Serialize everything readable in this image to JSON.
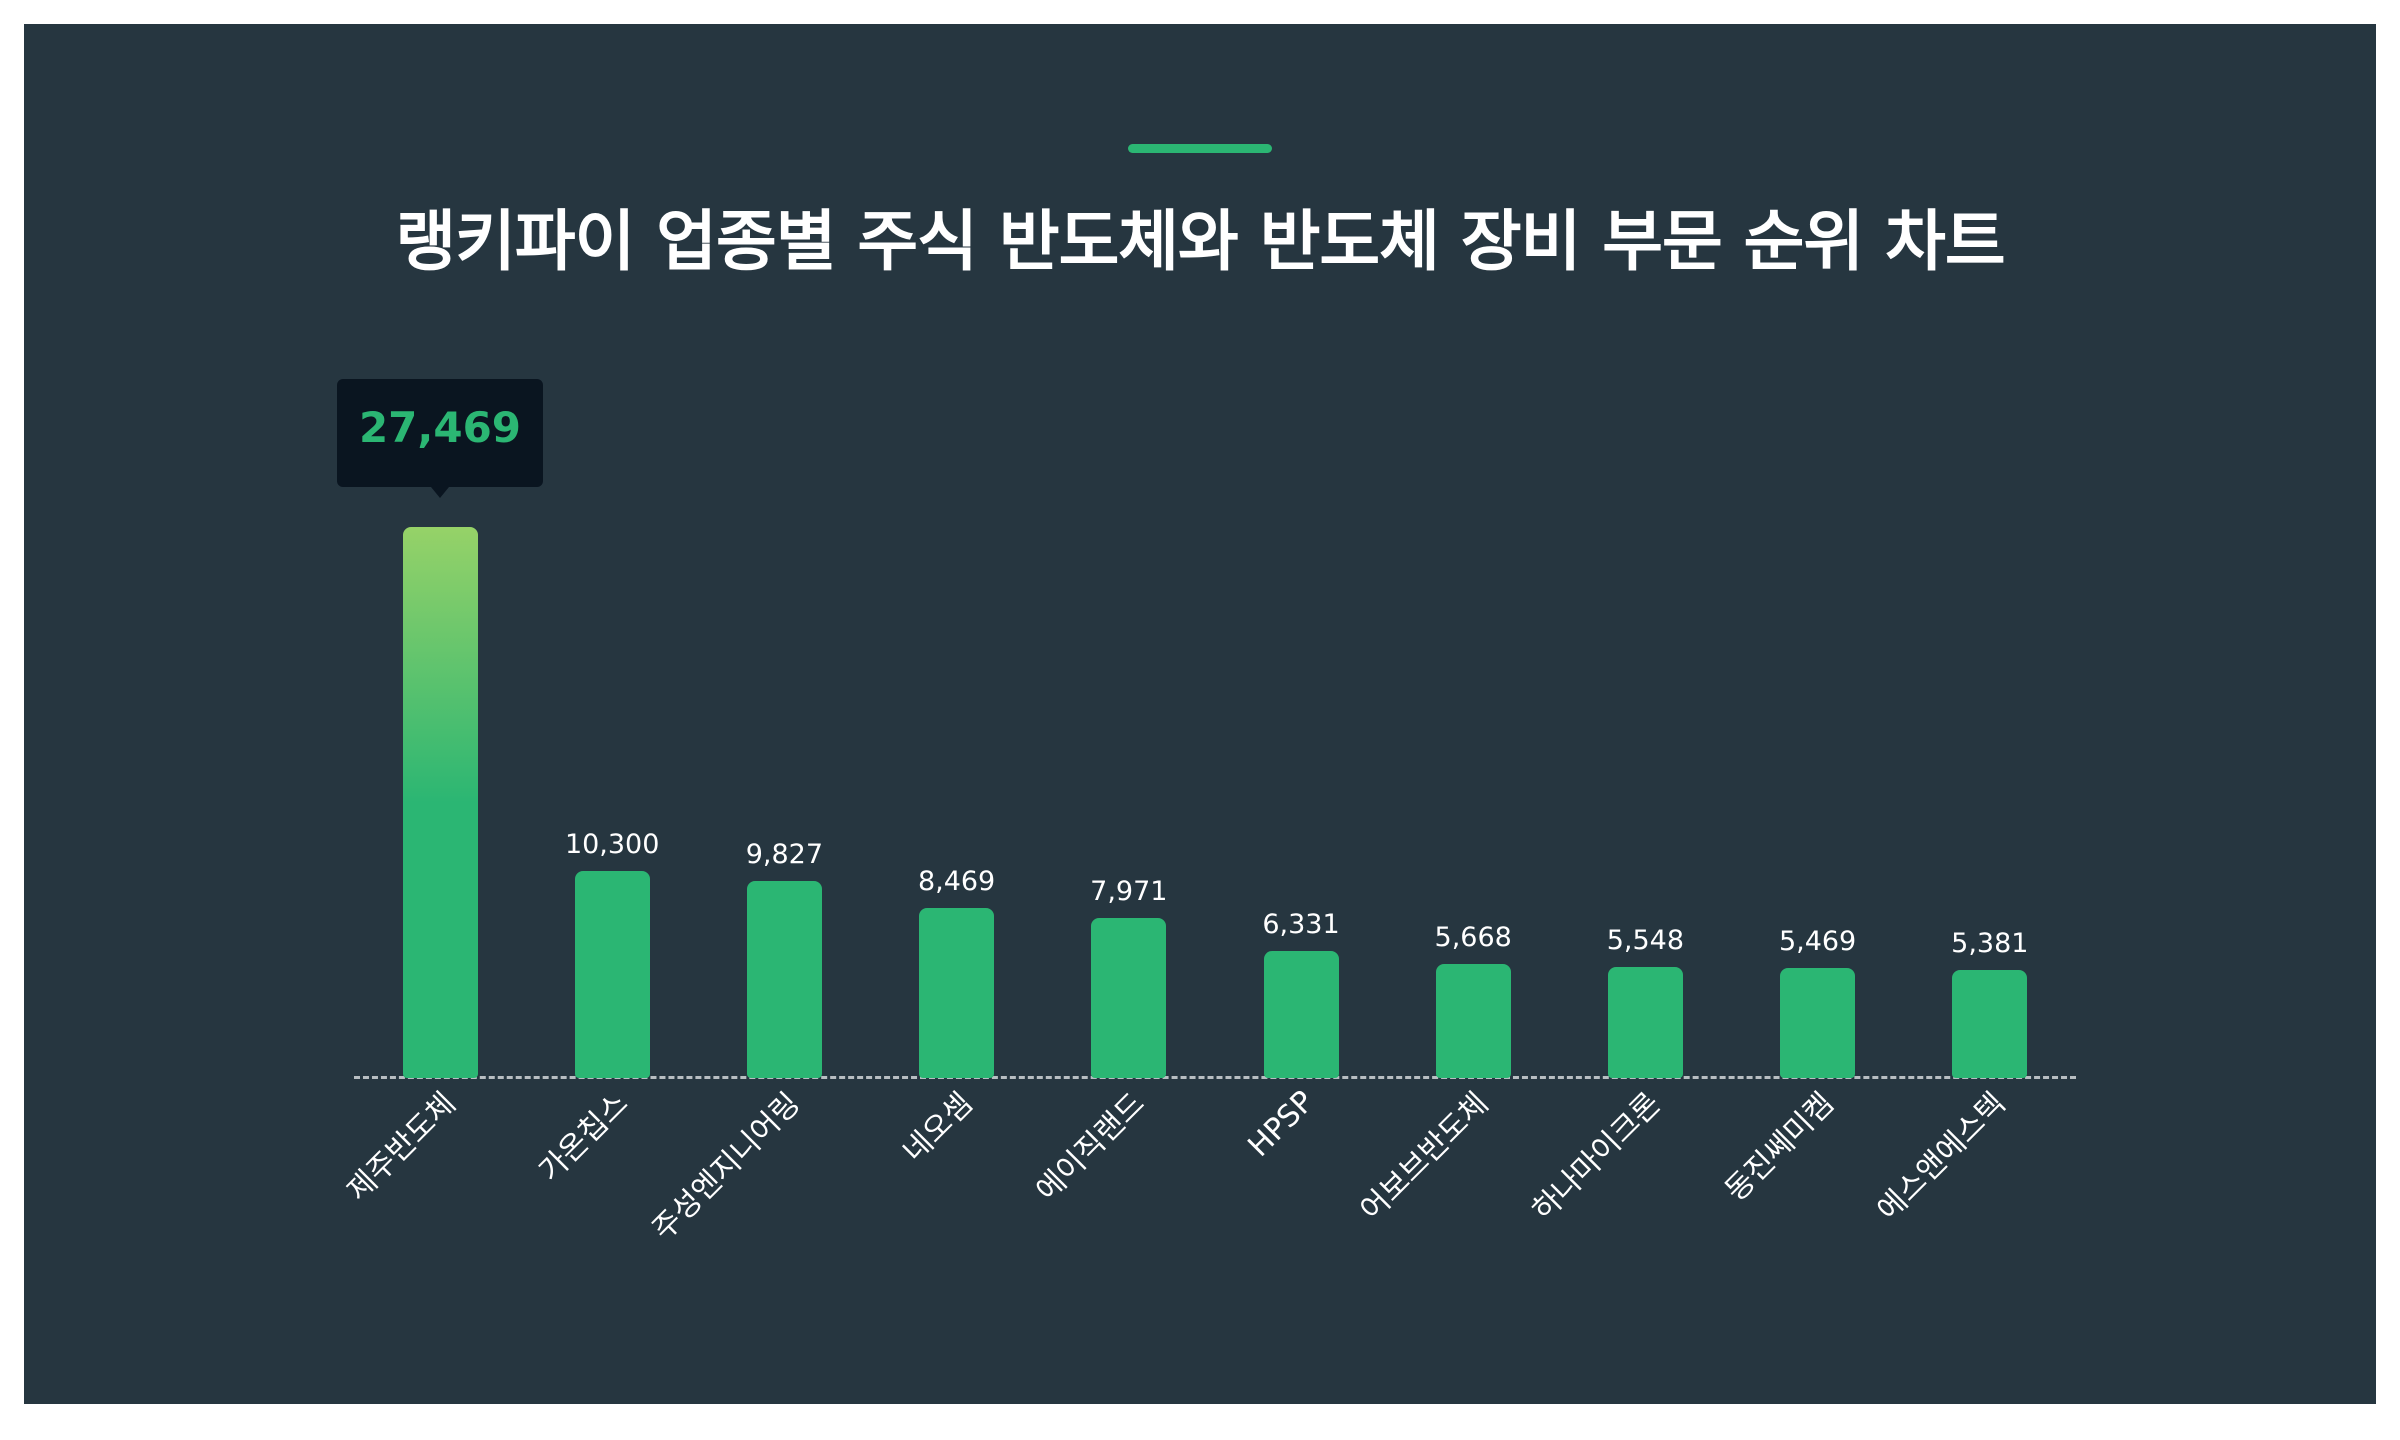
{
  "header": {
    "title": "랭키파이 업종별 주식 반도체와 반도체 장비 부문 순위 차트"
  },
  "colors": {
    "background": "#263640",
    "accent": "#2bb673",
    "bar": "#2bb673",
    "bar_highlight_top": "#96d268",
    "tooltip_bg": "#0a1520",
    "tooltip_text": "#2bb673",
    "text": "#ffffff",
    "baseline": "#b8bec2"
  },
  "tooltip": {
    "value_label": "27,469",
    "category": "제주반도체"
  },
  "chart_data": {
    "type": "bar",
    "title": "랭키파이 업종별 주식 반도체와 반도체 장비 부문 순위 차트",
    "xlabel": "",
    "ylabel": "",
    "categories": [
      "제주반도체",
      "가온칩스",
      "주성엔지니어링",
      "네오셈",
      "에이직랜드",
      "HPSP",
      "어보브반도체",
      "하나마이크론",
      "동진쎄미켐",
      "에스앤에스텍"
    ],
    "values": [
      27469,
      10300,
      9827,
      8469,
      7971,
      6331,
      5668,
      5548,
      5469,
      5381
    ],
    "value_labels": [
      "27,469",
      "10,300",
      "9,827",
      "8,469",
      "7,971",
      "6,331",
      "5,668",
      "5,548",
      "5,469",
      "5,381"
    ],
    "ylim": [
      0,
      27469
    ],
    "grid": false,
    "legend": "none",
    "highlighted_index": 0
  }
}
